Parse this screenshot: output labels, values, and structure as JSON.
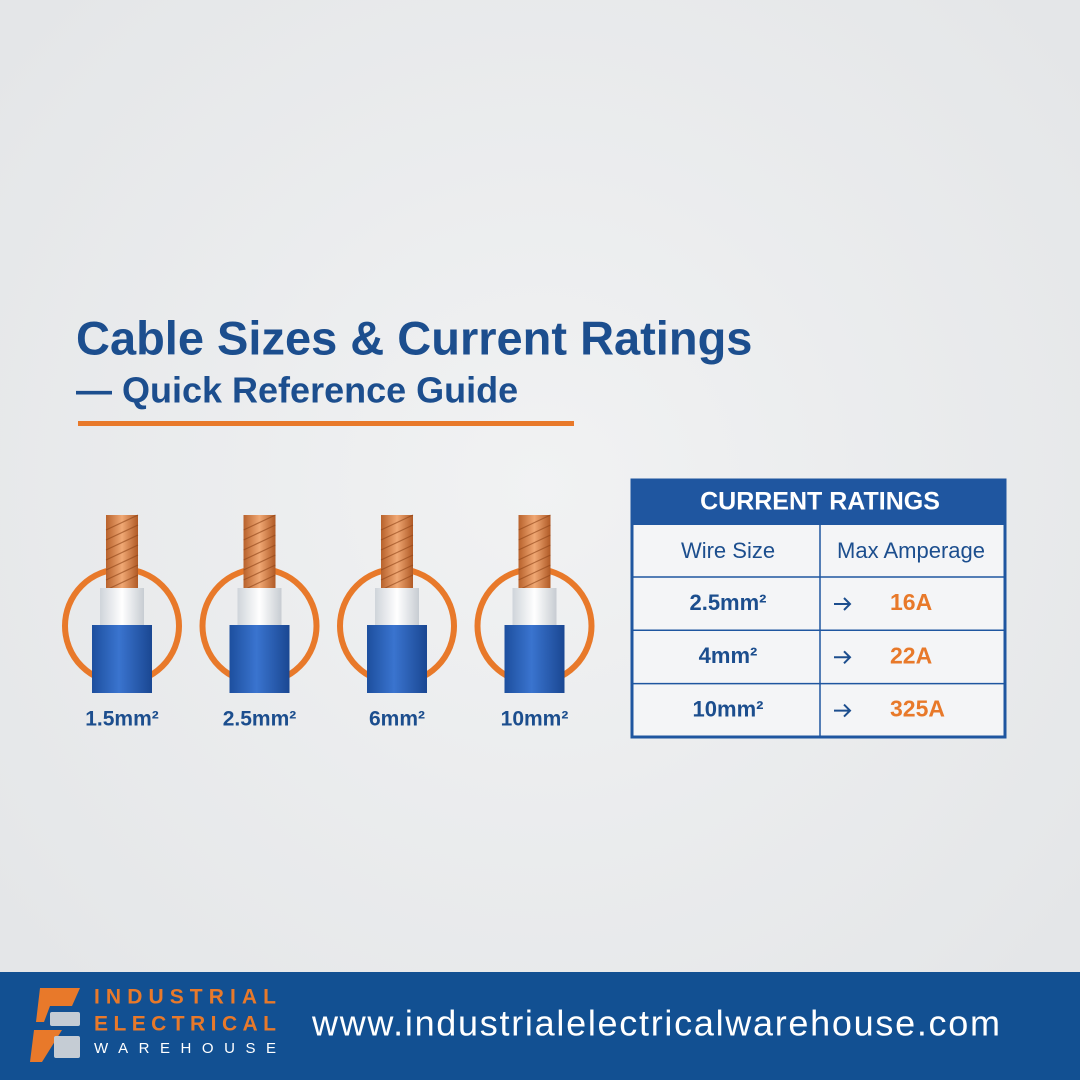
{
  "header": {
    "title": "Cable Sizes & Current Ratings",
    "subtitle": "— Quick Reference Guide"
  },
  "cables": [
    "1.5mm²",
    "2.5mm²",
    "6mm²",
    "10mm²"
  ],
  "table": {
    "title": "CURRENT RATINGS",
    "columns": [
      "Wire Size",
      "Max Amperage"
    ],
    "rows": [
      [
        "2.5mm²",
        "16A"
      ],
      [
        "4mm²",
        "22A"
      ],
      [
        "10mm²",
        "325A"
      ]
    ]
  },
  "footer": {
    "brand": [
      "INDUSTRIAL",
      "ELECTRICAL",
      "WAREHOUSE"
    ],
    "url": "www.industrialelectricalwarehouse.com"
  }
}
